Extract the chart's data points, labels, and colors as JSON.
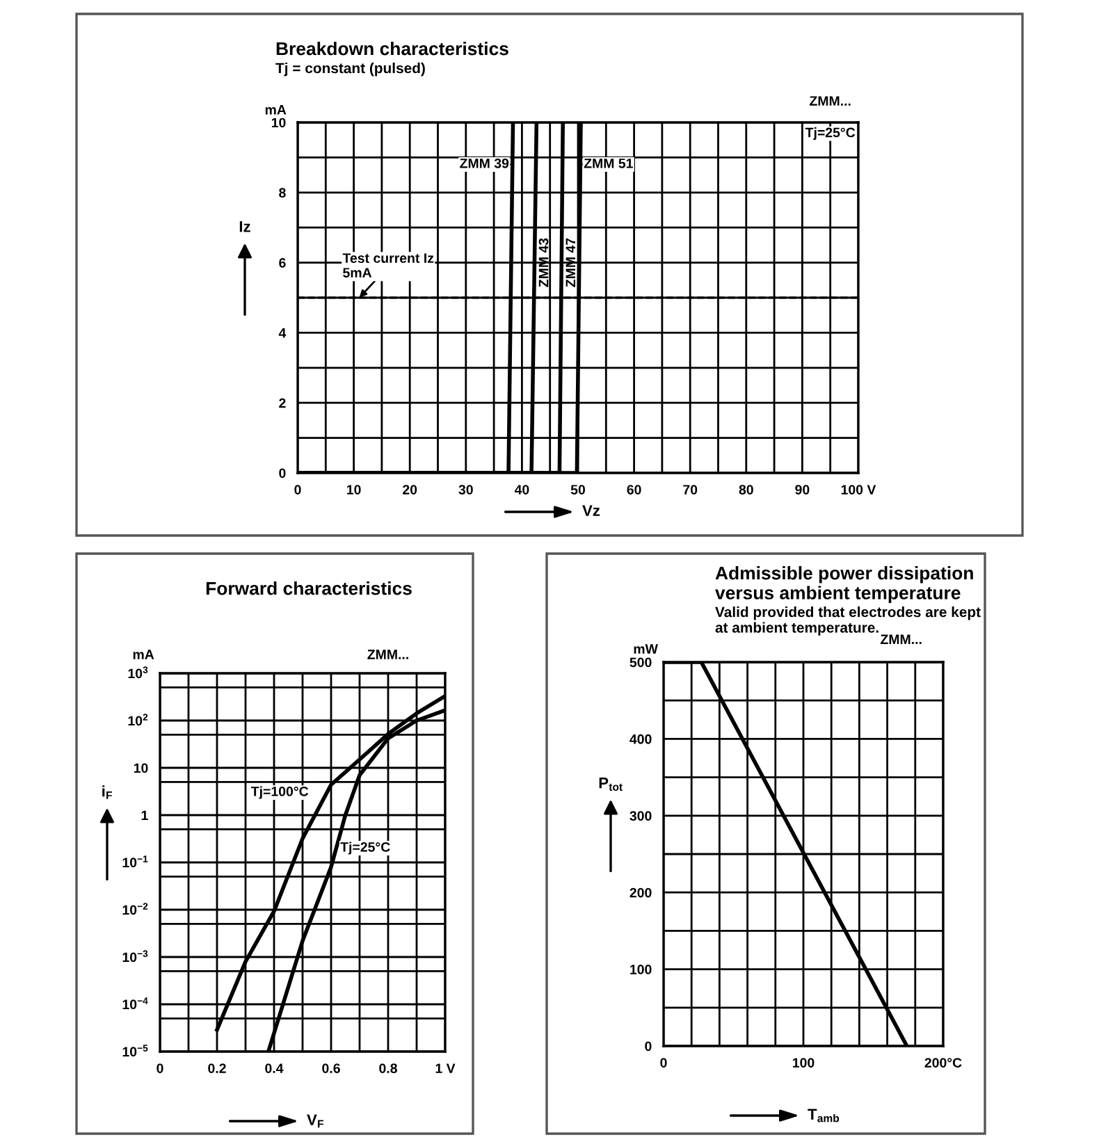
{
  "chart_data": [
    {
      "type": "line",
      "title": "Breakdown characteristics",
      "subtitle": "Tj = constant (pulsed)",
      "xlabel": "Vz",
      "ylabel": "Iz",
      "annotations": [
        "mA",
        "ZMM...",
        "Tj=25°C",
        {
          "text": "Test current Iz\n5mA",
          "x": 11,
          "y": 5
        }
      ],
      "series": [
        {
          "name": "ZMM 39",
          "color": "#000000",
          "x": [
            0,
            37.6,
            38.4
          ],
          "values": [
            0,
            0,
            10
          ]
        },
        {
          "name": "ZMM 43",
          "color": "#000000",
          "x": [
            0,
            41.7,
            42.6
          ],
          "values": [
            0,
            0,
            10
          ]
        },
        {
          "name": "ZMM 47",
          "color": "#000000",
          "x": [
            0,
            46.7,
            47.3
          ],
          "values": [
            0,
            0,
            10
          ]
        },
        {
          "name": "ZMM 51",
          "color": "#000000",
          "x": [
            0,
            49.8,
            50.5
          ],
          "values": [
            0,
            0,
            10
          ]
        }
      ],
      "xlim": [
        0,
        100
      ],
      "ylim": [
        0,
        10
      ],
      "xticks": [
        0,
        {
          "value": 5,
          "label": null
        },
        10,
        {
          "value": 15,
          "label": null
        },
        20,
        {
          "value": 25,
          "label": null
        },
        30,
        {
          "value": 35,
          "label": null
        },
        40,
        {
          "value": 45,
          "label": null
        },
        50,
        {
          "value": 55,
          "label": null
        },
        60,
        {
          "value": 65,
          "label": null
        },
        70,
        {
          "value": 75,
          "label": null
        },
        80,
        {
          "value": 85,
          "label": null
        },
        90,
        {
          "value": 95,
          "label": null
        },
        {
          "value": 100,
          "label": "100 V"
        }
      ],
      "yticks": [
        0,
        {
          "value": 1,
          "label": null
        },
        2,
        {
          "value": 3,
          "label": null
        },
        4,
        {
          "value": 5,
          "label": null
        },
        6,
        {
          "value": 7,
          "label": null
        },
        8,
        {
          "value": 9,
          "label": null
        },
        10
      ],
      "ref_lines": [
        {
          "axis": "y",
          "value": 5,
          "label": null,
          "color": "#000000",
          "line_style": "dashed"
        }
      ],
      "grid": true,
      "marker": "none",
      "line_style": "solid"
    },
    {
      "type": "line",
      "title": "Forward characteristics",
      "xlabel": "V$_{F}$",
      "ylabel": "i$_{F}$",
      "log": "y",
      "annotations": [
        "mA",
        "ZMM..."
      ],
      "series": [
        {
          "name": "Tj=100°C",
          "color": "#000000",
          "x": [
            0.2,
            0.3,
            0.4,
            0.5,
            0.6,
            0.7,
            0.8,
            0.9,
            1.0
          ],
          "values": [
            2.9e-05,
            0.0008,
            0.0093,
            0.32,
            4.4,
            15,
            52,
            142,
            330
          ]
        },
        {
          "name": "Tj=25°C",
          "color": "#000000",
          "x": [
            0.38,
            0.5,
            0.6,
            0.65,
            0.7,
            0.8,
            0.9,
            1.0
          ],
          "values": [
            1e-05,
            0.0022,
            0.08,
            1.0,
            7,
            42,
            100,
            165
          ]
        }
      ],
      "xlim": [
        0,
        1
      ],
      "ylim": [
        1e-05,
        1000
      ],
      "xticks": [
        0,
        {
          "value": 0.1,
          "label": null
        },
        0.2,
        {
          "value": 0.3,
          "label": null
        },
        0.4,
        {
          "value": 0.5,
          "label": null
        },
        0.6,
        {
          "value": 0.7,
          "label": null
        },
        0.8,
        {
          "value": 0.9,
          "label": null
        },
        {
          "value": 1,
          "label": "1 V"
        }
      ],
      "yticks": [
        {
          "value": 1e-05,
          "label": "10$^{−5}$"
        },
        {
          "value": 5e-05,
          "label": null
        },
        {
          "value": 0.0001,
          "label": "10$^{−4}$"
        },
        {
          "value": 0.0005,
          "label": null
        },
        {
          "value": 0.001,
          "label": "10$^{−3}$"
        },
        {
          "value": 0.005,
          "label": null
        },
        {
          "value": 0.01,
          "label": "10$^{−2}$"
        },
        {
          "value": 0.05,
          "label": null
        },
        {
          "value": 0.1,
          "label": "10$^{−1}$"
        },
        {
          "value": 0.5,
          "label": null
        },
        1,
        {
          "value": 5,
          "label": null
        },
        10,
        {
          "value": 50,
          "label": null
        },
        {
          "value": 100,
          "label": "10$^{2}$"
        },
        {
          "value": 500,
          "label": null
        },
        {
          "value": 1000,
          "label": "10$^{3}$"
        }
      ],
      "grid": true,
      "marker": "none",
      "line_style": "solid"
    },
    {
      "type": "line",
      "title": "Admissible power dissipation\nversus ambient temperature",
      "subtitle": "Valid provided that electrodes are kept\nat ambient temperature.",
      "xlabel": "T$_{amb}$",
      "ylabel": "P$_{tot}$",
      "annotations": [
        "mW",
        "ZMM..."
      ],
      "series": [
        {
          "color": "#000000",
          "x": [
            0,
            27,
            174
          ],
          "values": [
            500,
            500,
            0
          ]
        }
      ],
      "xlim": [
        0,
        200
      ],
      "ylim": [
        0,
        500
      ],
      "xticks": [
        0,
        {
          "value": 20,
          "label": null
        },
        {
          "value": 40,
          "label": null
        },
        {
          "value": 60,
          "label": null
        },
        {
          "value": 80,
          "label": null
        },
        100,
        {
          "value": 120,
          "label": null
        },
        {
          "value": 140,
          "label": null
        },
        {
          "value": 160,
          "label": null
        },
        {
          "value": 180,
          "label": null
        },
        {
          "value": 200,
          "label": "200°C"
        }
      ],
      "yticks": [
        0,
        {
          "value": 50,
          "label": null
        },
        100,
        {
          "value": 150,
          "label": null
        },
        200,
        {
          "value": 250,
          "label": null
        },
        300,
        {
          "value": 350,
          "label": null
        },
        400,
        {
          "value": 450,
          "label": null
        },
        500
      ],
      "grid": true,
      "marker": "none",
      "line_style": "solid"
    }
  ]
}
